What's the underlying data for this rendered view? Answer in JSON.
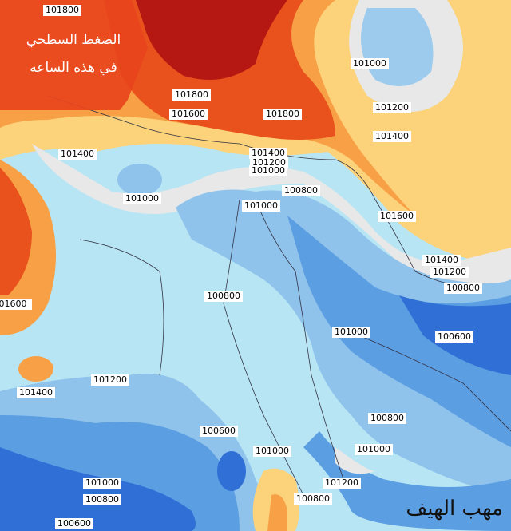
{
  "banner": {
    "line1": "الضغط السطحي",
    "line2": "في هذه الساعه"
  },
  "contour_labels": [
    "101800",
    "101800",
    "101600",
    "101800",
    "101000",
    "101200",
    "101400",
    "101400",
    "101400",
    "101200",
    "101000",
    "100800",
    "101000",
    "101000",
    "101600",
    "101400",
    "101200",
    "100800",
    "01600",
    "100800",
    "101000",
    "100600",
    "101200",
    "101400",
    "100800",
    "100600",
    "101000",
    "101000",
    "101200",
    "101000",
    "100800",
    "100800",
    "100600"
  ],
  "watermark": "مهب الهيف"
}
